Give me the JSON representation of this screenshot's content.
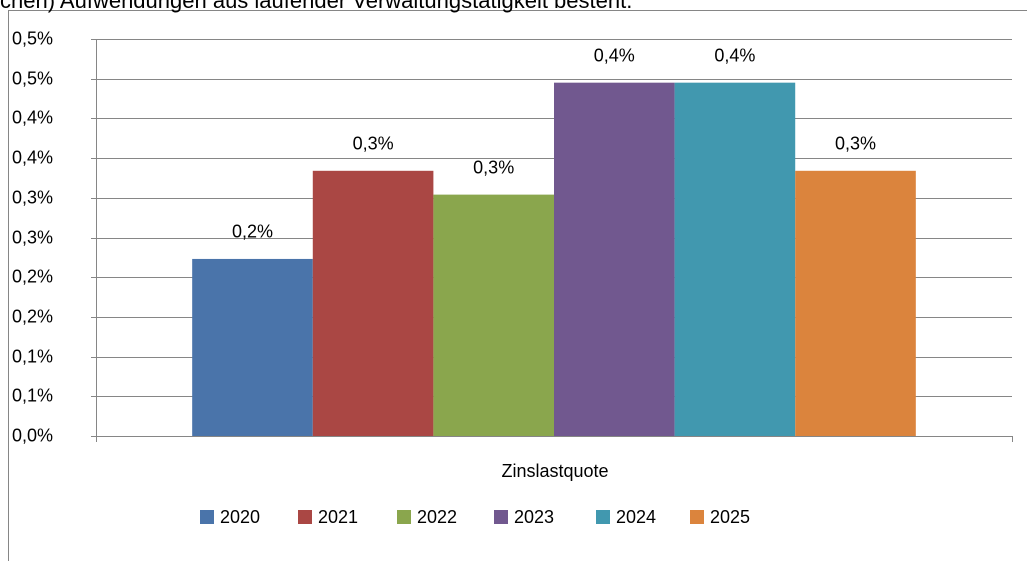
{
  "header_text": "chen) Aufwendungen aus laufender Verwaltungstätigkeit besteht.",
  "chart_data": {
    "type": "bar",
    "x_label": "Zinslastquote",
    "categories": [
      "Zinslastquote"
    ],
    "series": [
      {
        "name": "2020",
        "color": "#4a74aa",
        "values": [
          0.223
        ],
        "value_labels": [
          "0,2%"
        ]
      },
      {
        "name": "2021",
        "color": "#aa4744",
        "values": [
          0.334
        ],
        "value_labels": [
          "0,3%"
        ]
      },
      {
        "name": "2022",
        "color": "#8aa64d",
        "values": [
          0.304
        ],
        "value_labels": [
          "0,3%"
        ]
      },
      {
        "name": "2023",
        "color": "#71588f",
        "values": [
          0.445
        ],
        "value_labels": [
          "0,4%"
        ]
      },
      {
        "name": "2024",
        "color": "#4198af",
        "values": [
          0.445
        ],
        "value_labels": [
          "0,4%"
        ]
      },
      {
        "name": "2025",
        "color": "#db843d",
        "values": [
          0.334
        ],
        "value_labels": [
          "0,3%"
        ]
      }
    ],
    "ylim": [
      0,
      0.5
    ],
    "yticks": [
      {
        "value": 0,
        "label": "0,0%"
      },
      {
        "value": 0.05,
        "label": "0,1%"
      },
      {
        "value": 0.1,
        "label": "0,1%"
      },
      {
        "value": 0.15,
        "label": "0,2%"
      },
      {
        "value": 0.2,
        "label": "0,2%"
      },
      {
        "value": 0.25,
        "label": "0,3%"
      },
      {
        "value": 0.3,
        "label": "0,3%"
      },
      {
        "value": 0.35,
        "label": "0,4%"
      },
      {
        "value": 0.4,
        "label": "0,4%"
      },
      {
        "value": 0.45,
        "label": "0,5%"
      },
      {
        "value": 0.5,
        "label": "0,5%"
      }
    ],
    "grid": true,
    "legend": "bottom"
  }
}
